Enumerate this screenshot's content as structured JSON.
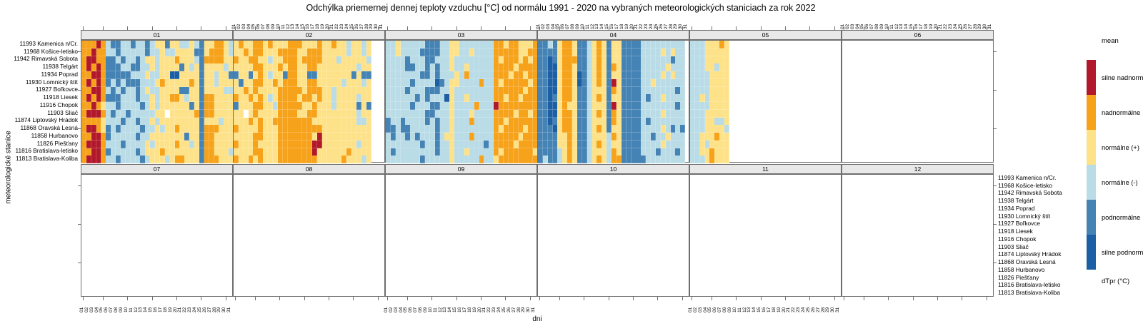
{
  "title": "Odchýlka priemernej dennej teploty vzduchu [°C] od normálu 1991 - 2020 na vybraných meteorologických staniciach za rok 2022",
  "axes": {
    "x_label": "dni",
    "y_label": "meteorologické stanice"
  },
  "legend": {
    "title": "mean",
    "footer": "dTpr (°C)",
    "items": [
      {
        "label": "silne nadnormálne",
        "color": "#B2182B"
      },
      {
        "label": "nadnormálne",
        "color": "#F7A21B"
      },
      {
        "label": "normálne (+)",
        "color": "#FDE289"
      },
      {
        "label": "normálne (-)",
        "color": "#B9DCE7"
      },
      {
        "label": "podnormálne",
        "color": "#4583B5"
      },
      {
        "label": "silne podnormálne",
        "color": "#1C5FA5"
      }
    ]
  },
  "stations": [
    "11993 Kamenica n/Cr.",
    "11968 Košice-letisko",
    "11942 Rimavská Sobota",
    "11938 Telgárt",
    "11934 Poprad",
    "11930 Lomnický štít",
    "11927 Boľkovce",
    "11918 Liesek",
    "11916 Chopok",
    "11903 Sliač",
    "11874 Liptovský Hrádok",
    "11868 Oravská Lesná",
    "11858 Hurbanovo",
    "11826 Piešťany",
    "11816 Bratislava-letisko",
    "11813 Bratislava-Koliba"
  ],
  "days": [
    "01",
    "02",
    "03",
    "04",
    "05",
    "06",
    "07",
    "08",
    "09",
    "10",
    "11",
    "12",
    "13",
    "14",
    "15",
    "16",
    "17",
    "18",
    "19",
    "20",
    "21",
    "22",
    "23",
    "24",
    "25",
    "26",
    "27",
    "28",
    "29",
    "30",
    "31"
  ],
  "chart_data": {
    "type": "heatmap",
    "title": "Odchýlka priemernej dennej teploty vzduchu [°C] od normálu 1991 - 2020 na vybraných meteorologických staniciach za rok 2022",
    "xlabel": "dni",
    "ylabel": "meteorologické stanice",
    "x_ticks_days": [
      1,
      5,
      10,
      15,
      20,
      25,
      30
    ],
    "categories": {
      "R": "silne nadnormálne",
      "O": "nadnormálne",
      "Y": "normálne (+)",
      "C": "normálne (-)",
      "B": "podnormálne",
      "D": "silne podnormálne",
      "W": "missing"
    },
    "colors": {
      "R": "#B2182B",
      "O": "#F7A21B",
      "Y": "#FDE289",
      "C": "#B9DCE7",
      "B": "#4583B5",
      "D": "#1C5FA5",
      "W": "#FFFFFF"
    },
    "months": [
      {
        "id": "01",
        "rows": [
          "OOOROCBBCCBCCBCYYBYYCCYCBYYOOYC",
          "OOROOCCBCCCCCBCCYCCYYYYBBYOOOYC",
          "ORROOBBCBCCBCYYCYYYOYYYCBOOOOYY",
          "OROROBBBCCBBCCYCYYYYBYCYBYYYYCY",
          "OORROBBBBBCCCYCCYYDDYYYYBYYCYYB",
          "OROROBCBCBBBCCCYOYYYYYOYBYYCYYY",
          "OORROCBCBCCBCYCCYYYYBBYYBYYYYCC",
          "OROROBBBCCCBCCYCYYOOYCYYBOOYYYY",
          "OOROYCCBCCCCBCYCYYYYYYBYBOOYYYY",
          "ORRROCBCCBCCCCCYYWYYYYYOBOOYYYY",
          "OOOOYCCCBCCBCCYCYYYYYYYYBYYYCYY",
          "ORROYBCBCCCCBCCYCYYOYYYYBOOOYYY",
          "OORROBCCCCCBCCYYYYYYYBYYBOOYYYY",
          "ORRROCCCBCCCCYCYYYYOYYCYBOOYYYY",
          "OORROBCCCCCBCYYYOYYYYYYYBOOYYYC",
          "ORRROCCBCCCCBCYYYCYOOYYYBOOOYYY"
        ]
      },
      {
        "id": "02",
        "rows": [
          "YOYYOOYOYYYOOOYYYOYYOYYCYYCYWWW",
          "YYOYOOYYYOOOOYYOOOYYYYYCYYCYWWW",
          "OYYOOYYCYYOOOYOOOOYYYCYYYYYCWWW",
          "YYYYOOYYYOYOOYYOOYYYYYYYYCYYWWW",
          "BYYBYOYCYYBOOYYBBYYYYYYYBYBBWWW",
          "YBYYOOYYOYOOOYYOOYYYYYCYYYCYWWW",
          "YYOYOYYYYOOOOOYOOOYYCYYYYYYYWWW",
          "OYYOYOYCYOOOOYOOYOYYCYYYYCYYWWW",
          "BYYYOOYYCOOOOOYYOYYYCYYYYBYBWWW",
          "YYWYOYYYYOOOOYYOOYYYYYYYYCYYWWW",
          "YYYOYOYYOOOOOOOOYYYYYYYYYCCYWWW",
          "OYYYYOYYYOOOOOOOOOYYYYYYYYYYWWW",
          "YYYYOOYYYOOOOOOOYRYYYYYYYYYYWWW",
          "OYYYOYYYYOOOOOOORRYYYYYYYCYYWWW",
          "YYYYOOYYYOOOOOOORYYYYYYOYYYYWWW",
          "OYYOYOYYYOOOOOOOOYYYYYOYYYCYWWW"
        ]
      },
      {
        "id": "03",
        "rows": [
          "CCYCCCCCBBBCCYYCCCCCCCOOYOOYYYO",
          "CCYCCCCBBBBCCYYCCYCCCCOOOOOYYOO",
          "CCCCBCCCBBCCCYCCCCCCCCOYOOOYOYO",
          "CCCCBBCCBCBCCYCCYCCCCCOOOOYOOOO",
          "CCCCCCCBBCBCCCYCOCCCCCOOOYOOYOO",
          "CCCCCBCCCCDBCYYCCCCOCCOYOOOOOYO",
          "CCCCBCCCBBBCCYCCCCCCCCOOOOOOYOO",
          "CCCCCCBCBCCCDYCCYCCCCCOOYOOYOOO",
          "CCCCCBCCCBBCCYCCCCOCCCROOOOOOOO",
          "CCCCCCCCBBCCCYCCCYCCCCOOOOYOOYO",
          "BCCBCCCCBCBCCYCCCOCCCCOOYOOOOOO",
          "BBCBBCCCCCBCCYCCCCCCCCOYOOOOYOO",
          "CBCCBCBCCCBCYYCCCOCCCCOOOOOYOOO",
          "CCCCCCCBCCBCCYCCCCCCBCOOOOYOOOO",
          "CBCCCCCCCCBCCYCCYCCCCCOYOOOOOOY",
          "CCCCCCCBCCCCCYCCCCCOCCYOOOOOOOO"
        ]
      },
      {
        "id": "04",
        "rows": [
          "BBCBYOOYBBCYOYBYYBBBBCCCCCCCCCW",
          "BBBBYOOYBBCYOYBYYBBBBCCCCYCYCCW",
          "BBDBYOOOBBCYOYBYYBBBBCCCCCCBCCW",
          "BBDDYOOYBBCYOYBOYBBBBCCCCCYCCCW",
          "BBDDYOOYDBCYOYBYYBBBBCCCCYCYCCW",
          "BBDDYOOYDBCYOYBRYBBBBCCYCCCCCCW",
          "BBDDYOOYBBCYYYBOYBBBBCCCCCCCBCW",
          "BBDBYOOYBBCYOYBYYBBBBCBCCYCCCCW",
          "BBDDYOYYBBCYYYBRYBBBBCCCCCCCBCW",
          "BBDDYOOYBBCYOYBOYBBBBCCCCYCCCCW",
          "BBDBYOOYBBCYYYBOYBBBBCBCCCCCCCW",
          "BBBDYOOYBBCYOYBYYBBBBCCCCYCBCBW",
          "BBBBYYOYBBCYYYCOYBBBBCCBCCYCCCW",
          "BBBBYYOYBBCYOYCYYBBBBCCCCYCCCCW",
          "BBBBCYOYBBCYYYCOYBBBBCCCBCCCBCW",
          "BCBBCYOYBBCYOYCOOBBBBBCCCCCCCCW"
        ]
      },
      {
        "id": "05",
        "rows": [
          "CCCYYYOYWWWWWWWWWWWWWWWWWWWWWWW",
          "CCCYYYYYWWWWWWWWWWWWWWWWWWWWWWW",
          "CCCYYYYYWWWWWWWWWWWWWWWWWWWWWWW",
          "CCCYYCYYWWWWWWWWWWWWWWWWWWWWWWW",
          "CCCCYYYYWWWWWWWWWWWWWWWWWWWWWWW",
          "CCCCYYYYWWWWWWWWWWWWWWWWWWWWWWW",
          "CCCCYYYYWWWWWWWWWWWWWWWWWWWWWWW",
          "CCYCYYYYWWWWWWWWWWWWWWWWWWWWWWW",
          "CCCCYYYYWWWWWWWWWWWWWWWWWWWWWWW",
          "CCCYYYYYWWWWWWWWWWWWWWWWWWWWWWW",
          "CCCYYCCYWWWWWWWWWWWWWWWWWWWWWWW",
          "CCCYYYYCWWWWWWWWWWWWWWWWWWWWWWW",
          "CCYYYOYYWWWWWWWWWWWWWWWWWWWWWWW",
          "CCYCYYYYWWWWWWWWWWWWWWWWWWWWWWW",
          "CCYYOYYYWWWWWWWWWWWWWWWWWWWWWWW",
          "CCCYOYYYWWWWWWWWWWWWWWWWWWWWWWW"
        ]
      },
      {
        "id": "06",
        "rows": []
      },
      {
        "id": "07",
        "rows": []
      },
      {
        "id": "08",
        "rows": []
      },
      {
        "id": "09",
        "rows": []
      },
      {
        "id": "10",
        "rows": []
      },
      {
        "id": "11",
        "rows": []
      },
      {
        "id": "12",
        "rows": []
      }
    ]
  }
}
